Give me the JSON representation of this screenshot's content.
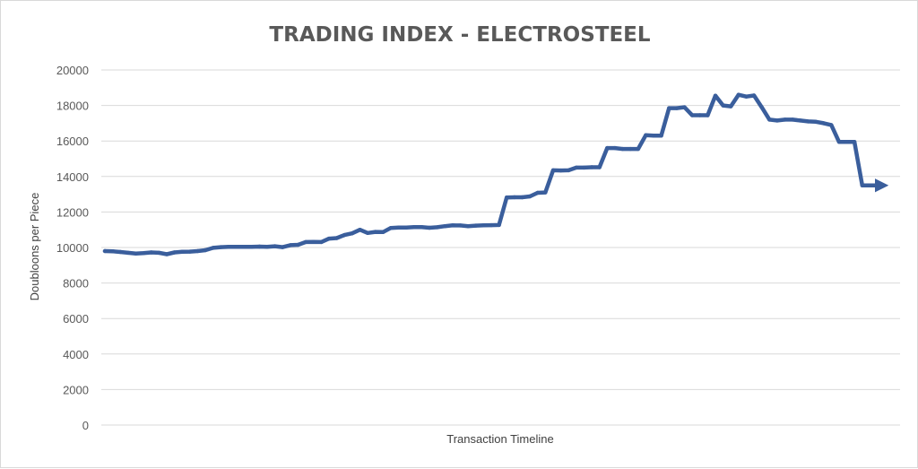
{
  "chart_data": {
    "type": "line",
    "title": "TRADING INDEX - ELECTROSTEEL",
    "xlabel": "Transaction Timeline",
    "ylabel": "Doubloons per Piece",
    "ylim": [
      0,
      20000
    ],
    "yticks": [
      "0",
      "2000",
      "4000",
      "6000",
      "8000",
      "10000",
      "12000",
      "14000",
      "16000",
      "18000",
      "20000"
    ],
    "grid": true,
    "series": [
      {
        "color": "#3a5e9c",
        "values": [
          9800,
          9790,
          9750,
          9700,
          9660,
          9680,
          9720,
          9700,
          9620,
          9720,
          9760,
          9770,
          9800,
          9850,
          9980,
          10020,
          10040,
          10040,
          10040,
          10040,
          10050,
          10040,
          10070,
          10020,
          10130,
          10150,
          10310,
          10320,
          10310,
          10500,
          10530,
          10700,
          10800,
          11000,
          10820,
          10880,
          10870,
          11100,
          11120,
          11120,
          11150,
          11150,
          11110,
          11140,
          11200,
          11250,
          11240,
          11200,
          11230,
          11250,
          11260,
          11270,
          12820,
          12830,
          12830,
          12880,
          13080,
          13100,
          14350,
          14340,
          14350,
          14500,
          14500,
          14520,
          14520,
          15600,
          15600,
          15550,
          15550,
          15550,
          16330,
          16300,
          16300,
          17850,
          17850,
          17900,
          17450,
          17450,
          17450,
          18550,
          18000,
          17950,
          18600,
          18500,
          18560,
          17900,
          17200,
          17150,
          17200,
          17200,
          17150,
          17100,
          17080,
          17000,
          16900,
          15950,
          15950,
          15950,
          13500,
          13500,
          13500
        ]
      }
    ]
  }
}
